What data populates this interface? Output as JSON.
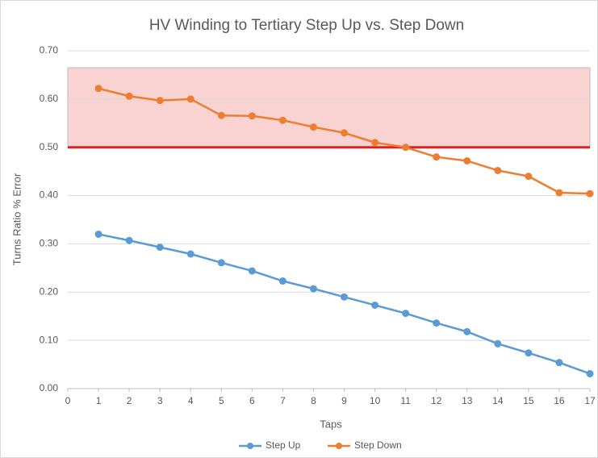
{
  "chart_data": {
    "type": "line",
    "title": "HV Winding to Tertiary Step Up vs. Step Down",
    "x_label": "Taps",
    "y_label": "Turns Ratio % Error",
    "x": [
      1,
      2,
      3,
      4,
      5,
      6,
      7,
      8,
      9,
      10,
      11,
      12,
      13,
      14,
      15,
      16,
      17
    ],
    "series": [
      {
        "name": "Step Up",
        "color": "#5b9bd5",
        "values": [
          0.32,
          0.307,
          0.293,
          0.279,
          0.261,
          0.244,
          0.223,
          0.207,
          0.19,
          0.173,
          0.156,
          0.136,
          0.118,
          0.093,
          0.074,
          0.054,
          0.031
        ]
      },
      {
        "name": "Step Down",
        "color": "#ed7d31",
        "values": [
          0.622,
          0.606,
          0.597,
          0.6,
          0.566,
          0.565,
          0.556,
          0.542,
          0.53,
          0.51,
          0.5,
          0.48,
          0.472,
          0.452,
          0.44,
          0.406,
          0.404
        ]
      }
    ],
    "threshold": 0.5,
    "threshold_color": "#e02020",
    "band": [
      0.5,
      0.665
    ],
    "band_color": "#f4a6a6",
    "xlim": [
      0,
      17
    ],
    "xticks": [
      0,
      1,
      2,
      3,
      4,
      5,
      6,
      7,
      8,
      9,
      10,
      11,
      12,
      13,
      14,
      15,
      16,
      17
    ],
    "ylim": [
      0,
      0.7
    ],
    "yticks": [
      {
        "value": 0,
        "label": "0.00"
      },
      {
        "value": 0.1,
        "label": "0.10"
      },
      {
        "value": 0.2,
        "label": "0.20"
      },
      {
        "value": 0.3,
        "label": "0.30"
      },
      {
        "value": 0.4,
        "label": "0.40"
      },
      {
        "value": 0.5,
        "label": "0.50"
      },
      {
        "value": 0.6,
        "label": "0.60"
      },
      {
        "value": 0.7,
        "label": "0.70"
      }
    ],
    "grid": true,
    "legend": "bottom"
  }
}
